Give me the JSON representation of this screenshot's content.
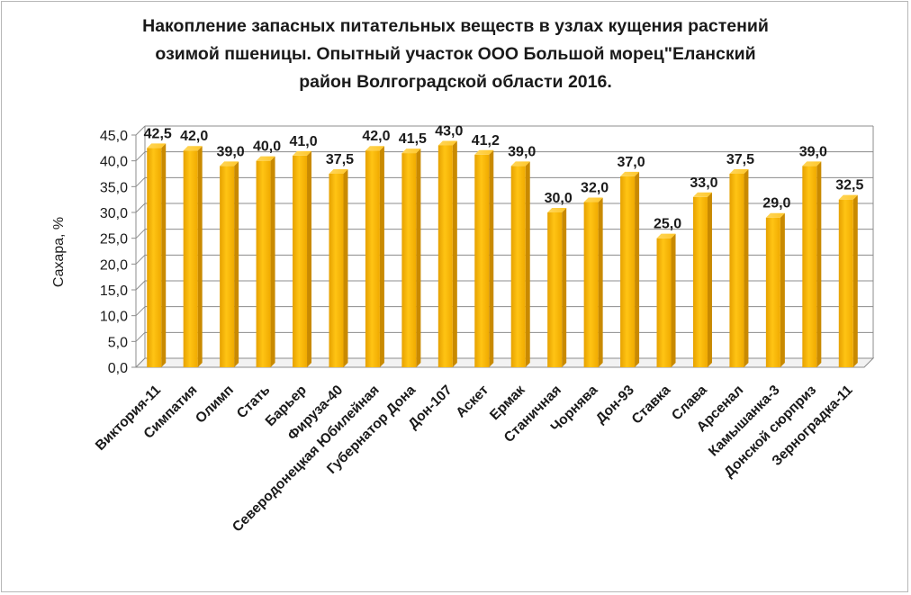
{
  "chart_data": {
    "type": "bar",
    "title_lines": [
      "Накопление запасных питательных веществ в узлах кущения растений",
      "озимой пшеницы. Опытный участок ООО Большой морец\"Еланский",
      "район Волгоградской области 2016."
    ],
    "xlabel": "",
    "ylabel": "Сахара, %",
    "ylim": [
      0,
      45
    ],
    "ytick_step": 5,
    "ytick_labels": [
      "0,0",
      "5,0",
      "10,0",
      "15,0",
      "20,0",
      "25,0",
      "30,0",
      "35,0",
      "40,0",
      "45,0"
    ],
    "grid": true,
    "legend": "none",
    "bar_color": "#FFBF00",
    "categories": [
      "Виктория-11",
      "Симпатия",
      "Олимп",
      "Стать",
      "Барьер",
      "Фируза-40",
      "Северодонецкая Юбилейная",
      "Губернатор Дона",
      "Дон-107",
      "Аскет",
      "Ермак",
      "Станичная",
      "Чорнява",
      "Дон-93",
      "Ставка",
      "Слава",
      "Арсенал",
      "Камышанка-3",
      "Донской сюрприз",
      "Зерноградка-11"
    ],
    "values": [
      42.5,
      42.0,
      39.0,
      40.0,
      41.0,
      37.5,
      42.0,
      41.5,
      43.0,
      41.2,
      39.0,
      30.0,
      32.0,
      37.0,
      25.0,
      33.0,
      37.5,
      29.0,
      39.0,
      32.5
    ],
    "value_labels": [
      "42,5",
      "42,0",
      "39,0",
      "40,0",
      "41,0",
      "37,5",
      "42,0",
      "41,5",
      "43,0",
      "41,2",
      "39,0",
      "30,0",
      "32,0",
      "37,0",
      "25,0",
      "33,0",
      "37,5",
      "29,0",
      "39,0",
      "32,5"
    ]
  }
}
